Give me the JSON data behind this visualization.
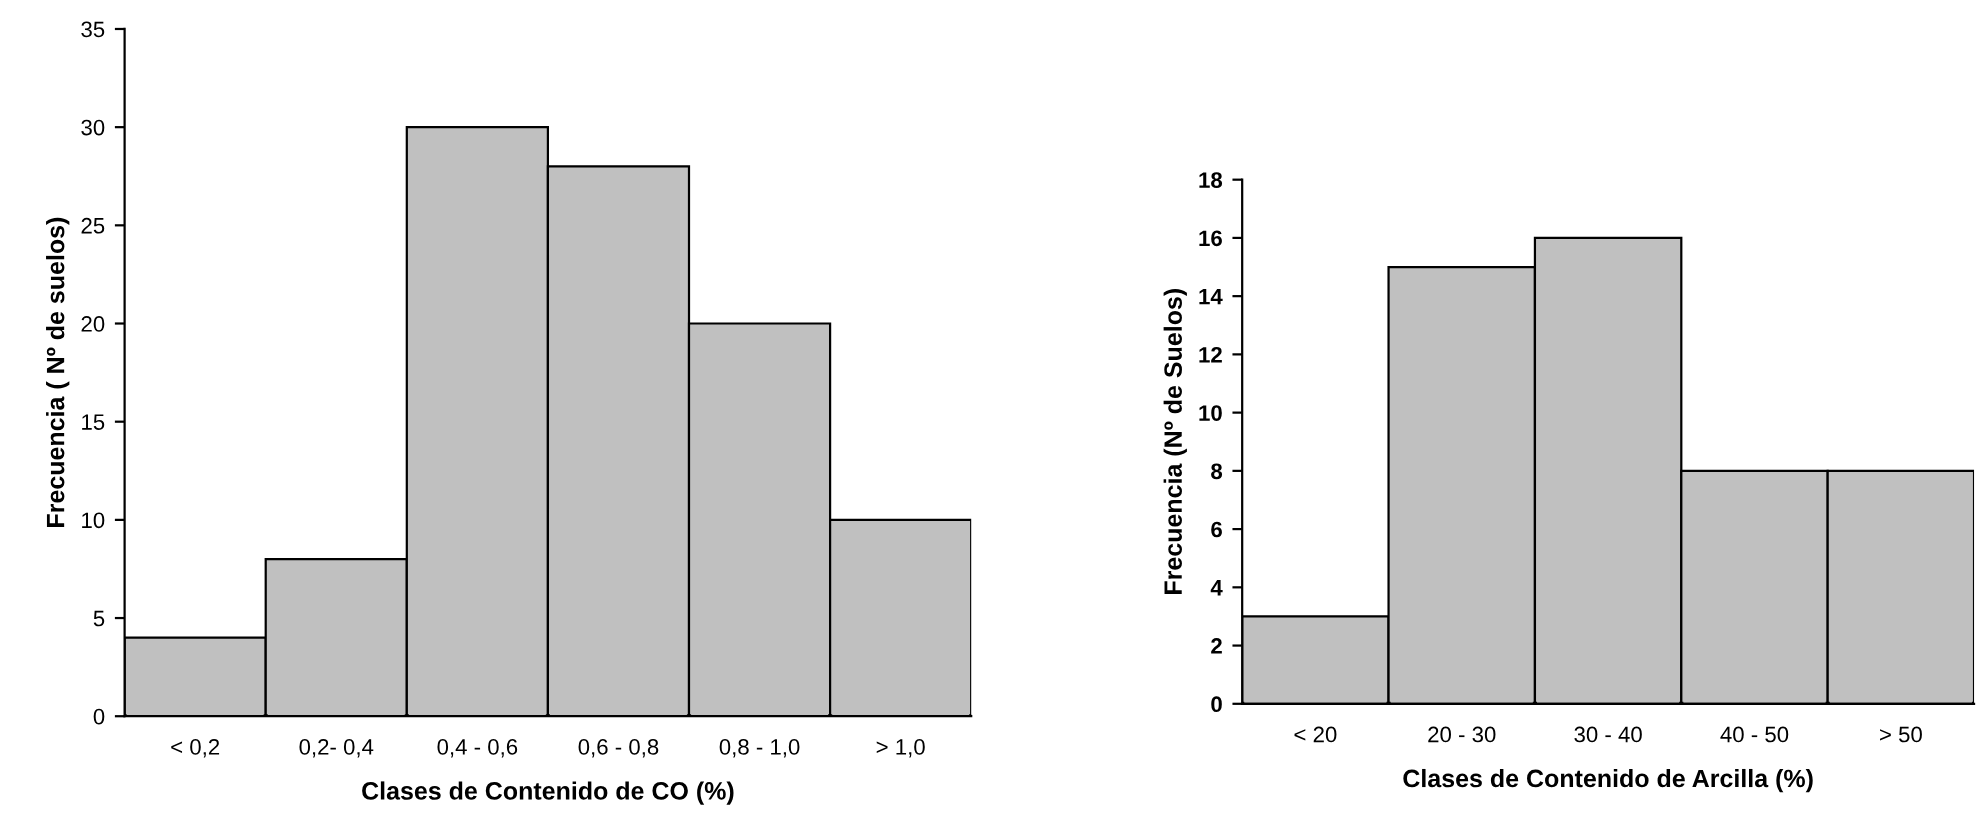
{
  "chart_data": [
    {
      "type": "bar",
      "xlabel": "Clases de Contenido de CO (%)",
      "ylabel": "Frecuencia ( Nº de suelos)",
      "categories": [
        "< 0,2",
        "0,2- 0,4",
        "0,4 - 0,6",
        "0,6 - 0,8",
        "0,8 - 1,0",
        "> 1,0"
      ],
      "values": [
        4,
        8,
        30,
        28,
        20,
        10
      ],
      "color": "#c0c0c0",
      "ylim": [
        0,
        35
      ],
      "yticks": [
        0,
        5,
        10,
        15,
        20,
        25,
        30,
        35
      ],
      "grid": false,
      "legend": false
    },
    {
      "type": "bar",
      "xlabel": "Clases de Contenido de Arcilla (%)",
      "ylabel": "Frecuencia (Nº de Suelos)",
      "categories": [
        "< 20",
        "20 - 30",
        "30 - 40",
        "40 - 50",
        "> 50"
      ],
      "values": [
        3,
        15,
        16,
        8,
        8
      ],
      "color": "#c0c0c0",
      "ylim": [
        0,
        18
      ],
      "yticks": [
        0,
        2,
        4,
        6,
        8,
        10,
        12,
        14,
        16,
        18
      ],
      "grid": false,
      "legend": false
    }
  ]
}
